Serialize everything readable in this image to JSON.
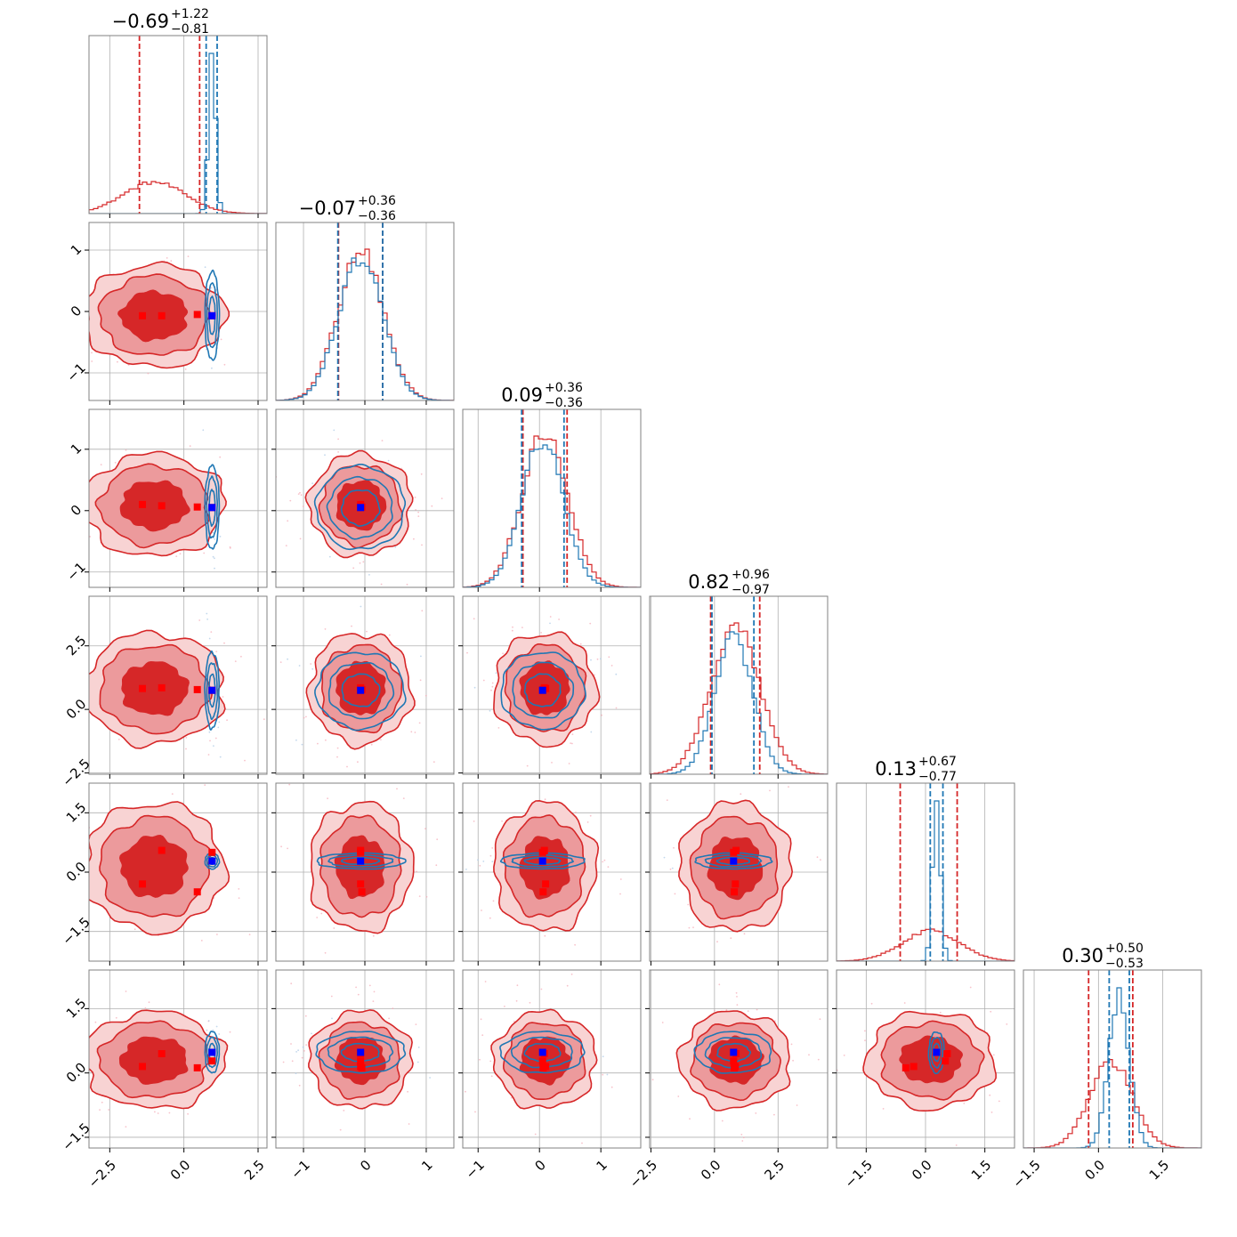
{
  "colors": {
    "red": "#d62728",
    "blue": "#1f77b4",
    "red_point": "#ff0000",
    "blue_point": "#0000ff",
    "grid": "#b0b0b0"
  },
  "chart_data": {
    "type": "corner",
    "parameters": [
      {
        "title": {
          "median": "−0.69",
          "plus": "+1.22",
          "minus": "−0.81"
        },
        "range": [
          -3.2,
          2.8
        ],
        "ticks": [
          -2.5,
          0.0,
          2.5
        ],
        "tick_labels": [
          "−2.5",
          "0.0",
          "2.5"
        ],
        "red_dist": {
          "mean": -1.0,
          "sd": 1.05
        },
        "blue_dist": {
          "mean": 0.95,
          "sd": 0.12
        },
        "red_quantiles": [
          -1.5,
          0.53
        ],
        "blue_quantiles": [
          0.75,
          1.12
        ],
        "truth_red": [
          -1.4,
          -0.75,
          0.45,
          0.95
        ],
        "truth_blue": 0.95
      },
      {
        "title": {
          "median": "−0.07",
          "plus": "+0.36",
          "minus": "−0.36"
        },
        "range": [
          -1.45,
          1.45
        ],
        "ticks": [
          -1,
          0,
          1
        ],
        "tick_labels": [
          "−1",
          "0",
          "1"
        ],
        "red_dist": {
          "mean": -0.07,
          "sd": 0.37
        },
        "blue_dist": {
          "mean": -0.07,
          "sd": 0.36
        },
        "red_quantiles": [
          -0.43,
          0.29
        ],
        "blue_quantiles": [
          -0.44,
          0.29
        ],
        "truth_red": [
          -0.07,
          -0.07,
          -0.05,
          -0.07
        ],
        "truth_blue": -0.07
      },
      {
        "title": {
          "median": "0.09",
          "plus": "+0.36",
          "minus": "−0.36"
        },
        "range": [
          -1.25,
          1.65
        ],
        "ticks": [
          -1,
          0,
          1
        ],
        "tick_labels": [
          "−1",
          "0",
          "1"
        ],
        "red_dist": {
          "mean": 0.09,
          "sd": 0.37
        },
        "blue_dist": {
          "mean": 0.05,
          "sd": 0.34
        },
        "red_quantiles": [
          -0.27,
          0.45
        ],
        "blue_quantiles": [
          -0.29,
          0.4
        ],
        "truth_red": [
          0.1,
          0.08,
          0.06,
          0.05
        ],
        "truth_blue": 0.05
      },
      {
        "title": {
          "median": "0.82",
          "plus": "+0.96",
          "minus": "−0.97"
        },
        "range": [
          -2.55,
          4.45
        ],
        "ticks": [
          -2.5,
          0.0,
          2.5
        ],
        "tick_labels": [
          "−2.5",
          "0.0",
          "2.5"
        ],
        "red_dist": {
          "mean": 0.82,
          "sd": 0.97
        },
        "blue_dist": {
          "mean": 0.75,
          "sd": 0.75
        },
        "red_quantiles": [
          -0.15,
          1.78
        ],
        "blue_quantiles": [
          -0.1,
          1.55
        ],
        "truth_red": [
          0.82,
          0.85,
          0.78,
          0.75
        ],
        "truth_blue": 0.75
      },
      {
        "title": {
          "median": "0.13",
          "plus": "+0.67",
          "minus": "−0.77"
        },
        "range": [
          -2.25,
          2.25
        ],
        "ticks": [
          -1.5,
          0.0,
          1.5
        ],
        "tick_labels": [
          "−1.5",
          "0.0",
          "1.5"
        ],
        "red_dist": {
          "mean": 0.13,
          "sd": 0.72
        },
        "blue_dist": {
          "mean": 0.28,
          "sd": 0.1
        },
        "red_quantiles": [
          -0.64,
          0.8
        ],
        "blue_quantiles": [
          0.12,
          0.44
        ],
        "truth_red": [
          -0.3,
          0.55,
          -0.5,
          0.5
        ],
        "truth_blue": 0.28
      },
      {
        "title": {
          "median": "0.30",
          "plus": "+0.50",
          "minus": "−0.53"
        },
        "range": [
          -1.75,
          2.4
        ],
        "ticks": [
          -1.5,
          0.0,
          1.5
        ],
        "tick_labels": [
          "−1.5",
          "0.0",
          "1.5"
        ],
        "red_dist": {
          "mean": 0.3,
          "sd": 0.5
        },
        "blue_dist": {
          "mean": 0.48,
          "sd": 0.24
        },
        "red_quantiles": [
          -0.23,
          0.8
        ],
        "blue_quantiles": [
          0.25,
          0.72
        ],
        "truth_red": [
          0.15,
          0.45,
          0.12,
          0.28
        ],
        "truth_blue": 0.48
      }
    ],
    "grid": true,
    "series": [
      {
        "color": "#d62728"
      },
      {
        "color": "#1f77b4"
      }
    ]
  }
}
